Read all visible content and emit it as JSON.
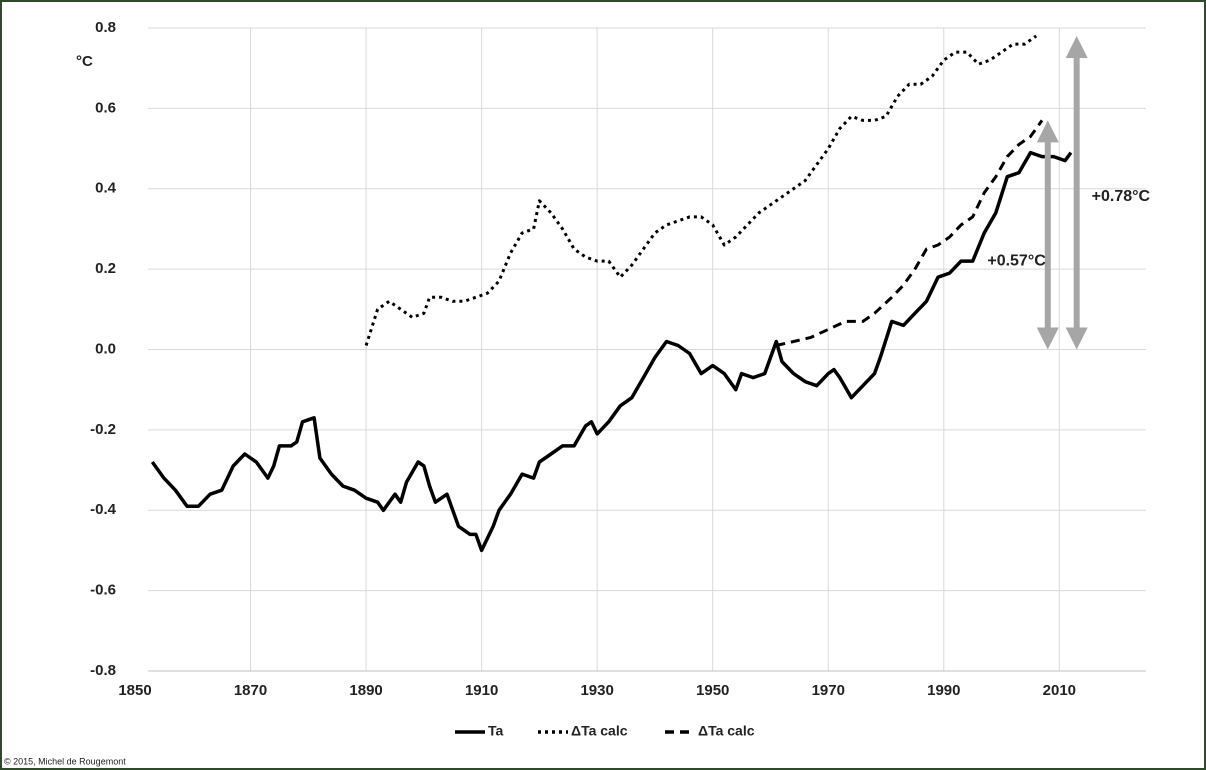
{
  "chart_data": {
    "type": "line",
    "y_label": "°C",
    "xlim": [
      1850,
      2025
    ],
    "xticks": [
      1850,
      1870,
      1890,
      1910,
      1930,
      1950,
      1970,
      1990,
      2010
    ],
    "ylim": [
      -0.8,
      0.8
    ],
    "yticks": [
      -0.8,
      -0.6,
      -0.4,
      -0.2,
      {
        "value": 0,
        "label": "0.0"
      },
      0.2,
      0.4,
      0.6,
      0.8
    ],
    "grid": true,
    "legend": "bottom",
    "series": [
      {
        "name": "Ta",
        "color": "#000000",
        "style": "solid",
        "x": [
          1853,
          1855,
          1857,
          1859,
          1861,
          1863,
          1865,
          1867,
          1869,
          1871,
          1873,
          1874,
          1875,
          1877,
          1878,
          1879,
          1881,
          1882,
          1884,
          1886,
          1888,
          1890,
          1892,
          1893,
          1895,
          1896,
          1897,
          1899,
          1900,
          1901,
          1902,
          1904,
          1906,
          1908,
          1909,
          1910,
          1912,
          1913,
          1915,
          1917,
          1919,
          1920,
          1922,
          1924,
          1926,
          1928,
          1929,
          1930,
          1932,
          1934,
          1936,
          1938,
          1940,
          1942,
          1944,
          1946,
          1948,
          1950,
          1952,
          1954,
          1955,
          1957,
          1959,
          1961,
          1962,
          1964,
          1966,
          1968,
          1970,
          1971,
          1972,
          1974,
          1976,
          1978,
          1979,
          1981,
          1983,
          1985,
          1987,
          1989,
          1991,
          1993,
          1995,
          1997,
          1999,
          2001,
          2003,
          2005,
          2007,
          2009,
          2011,
          2012
        ],
        "values": [
          -0.28,
          -0.32,
          -0.35,
          -0.39,
          -0.39,
          -0.36,
          -0.35,
          -0.29,
          -0.26,
          -0.28,
          -0.32,
          -0.29,
          -0.24,
          -0.24,
          -0.23,
          -0.18,
          -0.17,
          -0.27,
          -0.31,
          -0.34,
          -0.35,
          -0.37,
          -0.38,
          -0.4,
          -0.36,
          -0.38,
          -0.33,
          -0.28,
          -0.29,
          -0.34,
          -0.38,
          -0.36,
          -0.44,
          -0.46,
          -0.46,
          -0.5,
          -0.44,
          -0.4,
          -0.36,
          -0.31,
          -0.32,
          -0.28,
          -0.26,
          -0.24,
          -0.24,
          -0.19,
          -0.18,
          -0.21,
          -0.18,
          -0.14,
          -0.12,
          -0.07,
          -0.02,
          0.02,
          0.01,
          -0.01,
          -0.06,
          -0.04,
          -0.06,
          -0.1,
          -0.06,
          -0.07,
          -0.06,
          0.02,
          -0.03,
          -0.06,
          -0.08,
          -0.09,
          -0.06,
          -0.05,
          -0.07,
          -0.12,
          -0.09,
          -0.06,
          -0.02,
          0.07,
          0.06,
          0.09,
          0.12,
          0.18,
          0.19,
          0.22,
          0.22,
          0.29,
          0.34,
          0.43,
          0.44,
          0.49,
          0.48,
          0.48,
          0.47,
          0.49
        ]
      },
      {
        "name": "ΔTa calc",
        "color": "#000000",
        "style": "dotted",
        "x": [
          1890,
          1892,
          1894,
          1896,
          1898,
          1900,
          1901,
          1903,
          1905,
          1907,
          1909,
          1911,
          1913,
          1915,
          1917,
          1919,
          1920,
          1922,
          1924,
          1926,
          1928,
          1930,
          1932,
          1934,
          1936,
          1938,
          1940,
          1942,
          1944,
          1946,
          1948,
          1950,
          1952,
          1954,
          1956,
          1958,
          1960,
          1962,
          1964,
          1966,
          1968,
          1970,
          1972,
          1974,
          1976,
          1978,
          1980,
          1982,
          1984,
          1986,
          1988,
          1990,
          1992,
          1994,
          1996,
          1998,
          2000,
          2002,
          2004,
          2006
        ],
        "values": [
          0.01,
          0.1,
          0.12,
          0.1,
          0.08,
          0.09,
          0.13,
          0.13,
          0.12,
          0.12,
          0.13,
          0.14,
          0.17,
          0.24,
          0.29,
          0.3,
          0.37,
          0.34,
          0.3,
          0.25,
          0.23,
          0.22,
          0.22,
          0.18,
          0.21,
          0.25,
          0.29,
          0.31,
          0.32,
          0.33,
          0.33,
          0.31,
          0.26,
          0.28,
          0.31,
          0.34,
          0.36,
          0.38,
          0.4,
          0.42,
          0.46,
          0.5,
          0.55,
          0.58,
          0.57,
          0.57,
          0.58,
          0.63,
          0.66,
          0.66,
          0.68,
          0.72,
          0.74,
          0.74,
          0.71,
          0.72,
          0.74,
          0.76,
          0.76,
          0.78
        ]
      },
      {
        "name": "ΔTa calc",
        "color": "#000000",
        "style": "dashed",
        "x": [
          1961,
          1964,
          1967,
          1970,
          1973,
          1976,
          1978,
          1981,
          1983,
          1985,
          1987,
          1989,
          1991,
          1993,
          1995,
          1997,
          1999,
          2001,
          2003,
          2005,
          2007
        ],
        "values": [
          0.01,
          0.02,
          0.03,
          0.05,
          0.07,
          0.07,
          0.09,
          0.13,
          0.16,
          0.2,
          0.25,
          0.26,
          0.28,
          0.31,
          0.33,
          0.39,
          0.43,
          0.48,
          0.51,
          0.53,
          0.57
        ]
      }
    ],
    "annotations": [
      {
        "text": "+0.57°C",
        "x": 2008,
        "from": 0,
        "to": 0.57,
        "color": "#a6a6a6"
      },
      {
        "text": "+0.78°C",
        "x": 2013,
        "from": 0,
        "to": 0.78,
        "color": "#a6a6a6"
      }
    ],
    "copyright": "© 2015, Michel de Rougemont"
  }
}
